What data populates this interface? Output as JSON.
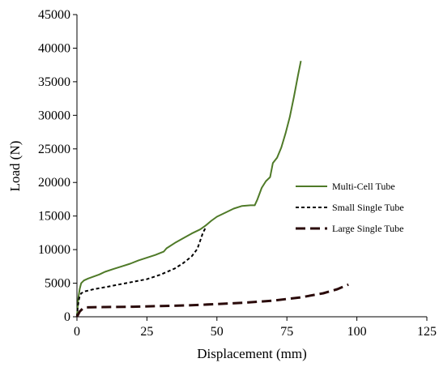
{
  "chart_data": {
    "type": "line",
    "xlabel": "Displacement (mm)",
    "ylabel": "Load (N)",
    "xlim": [
      0,
      125
    ],
    "ylim": [
      0,
      45000
    ],
    "xticks": [
      0,
      25,
      50,
      75,
      100,
      125
    ],
    "yticks": [
      0,
      5000,
      10000,
      15000,
      20000,
      25000,
      30000,
      35000,
      40000,
      45000
    ],
    "grid": false,
    "legend_position": "right",
    "series": [
      {
        "name": "Multi-Cell Tube",
        "color": "#4f7a28",
        "dash": "solid",
        "points": [
          [
            0,
            0
          ],
          [
            0.5,
            2800
          ],
          [
            1,
            4200
          ],
          [
            1.5,
            5000
          ],
          [
            2.5,
            5400
          ],
          [
            4,
            5700
          ],
          [
            6,
            6000
          ],
          [
            8,
            6300
          ],
          [
            10,
            6700
          ],
          [
            13,
            7100
          ],
          [
            16,
            7500
          ],
          [
            19,
            7900
          ],
          [
            22,
            8400
          ],
          [
            25,
            8800
          ],
          [
            28,
            9200
          ],
          [
            31,
            9700
          ],
          [
            32,
            10200
          ],
          [
            35,
            11000
          ],
          [
            38,
            11700
          ],
          [
            41,
            12400
          ],
          [
            44,
            13000
          ],
          [
            46,
            13600
          ],
          [
            48,
            14300
          ],
          [
            50,
            14900
          ],
          [
            53,
            15500
          ],
          [
            56,
            16100
          ],
          [
            59,
            16500
          ],
          [
            62,
            16600
          ],
          [
            63.5,
            16600
          ],
          [
            64.5,
            17500
          ],
          [
            66,
            19200
          ],
          [
            67.5,
            20200
          ],
          [
            69,
            20800
          ],
          [
            70,
            22900
          ],
          [
            71.5,
            23700
          ],
          [
            73,
            25200
          ],
          [
            74.5,
            27300
          ],
          [
            76,
            29700
          ],
          [
            77.5,
            32700
          ],
          [
            79,
            36000
          ],
          [
            80,
            38100
          ]
        ]
      },
      {
        "name": "Small Single Tube",
        "color": "#000000",
        "dash": "short",
        "points": [
          [
            0,
            0
          ],
          [
            0.3,
            1500
          ],
          [
            0.8,
            2800
          ],
          [
            1.5,
            3500
          ],
          [
            3,
            3800
          ],
          [
            6,
            4100
          ],
          [
            10,
            4400
          ],
          [
            15,
            4800
          ],
          [
            20,
            5200
          ],
          [
            25,
            5600
          ],
          [
            30,
            6300
          ],
          [
            35,
            7200
          ],
          [
            38,
            8000
          ],
          [
            41,
            9000
          ],
          [
            43,
            10100
          ],
          [
            44,
            11300
          ],
          [
            45,
            12500
          ],
          [
            46,
            13300
          ]
        ]
      },
      {
        "name": "Large Single Tube",
        "color": "#2a0a0a",
        "dash": "long",
        "points": [
          [
            0,
            0
          ],
          [
            1,
            800
          ],
          [
            2,
            1200
          ],
          [
            3,
            1400
          ],
          [
            10,
            1450
          ],
          [
            20,
            1500
          ],
          [
            30,
            1600
          ],
          [
            40,
            1700
          ],
          [
            50,
            1900
          ],
          [
            60,
            2100
          ],
          [
            70,
            2400
          ],
          [
            80,
            2900
          ],
          [
            88,
            3500
          ],
          [
            93,
            4100
          ],
          [
            97,
            4800
          ]
        ]
      }
    ]
  }
}
